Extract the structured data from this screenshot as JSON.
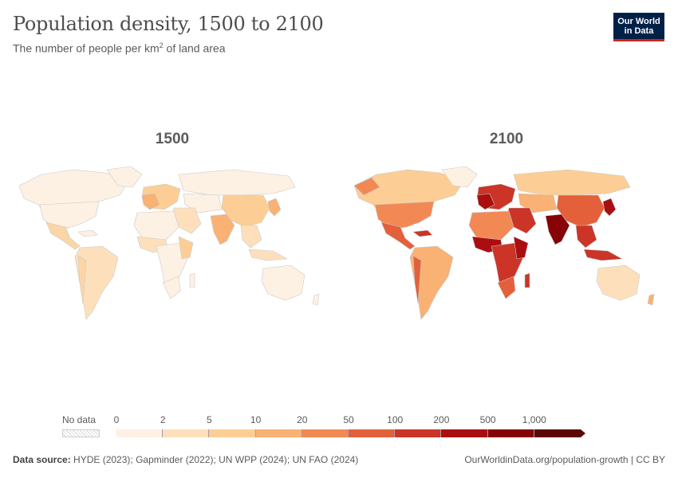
{
  "header": {
    "title": "Population density, 1500 to 2100",
    "subtitle_prefix": "The number of people per km",
    "subtitle_sup": "2",
    "subtitle_suffix": " of land area"
  },
  "logo": {
    "line1": "Our World",
    "line2": "in Data"
  },
  "maps": [
    {
      "year": "1500"
    },
    {
      "year": "2100"
    }
  ],
  "legend": {
    "no_data_label": "No data",
    "ticks": [
      "0",
      "2",
      "5",
      "10",
      "20",
      "50",
      "100",
      "200",
      "500",
      "1,000"
    ],
    "colors": [
      "#fdf1e3",
      "#fde0bb",
      "#fcce95",
      "#f9b174",
      "#f28955",
      "#e4603a",
      "#cb3427",
      "#aa0e10",
      "#860307",
      "#5c0707"
    ]
  },
  "footer": {
    "source_label": "Data source:",
    "source_text": " HYDE (2023); Gapminder (2022); UN WPP (2024); UN FAO (2024)",
    "url_text": "OurWorldinData.org/population-growth | CC BY"
  }
}
